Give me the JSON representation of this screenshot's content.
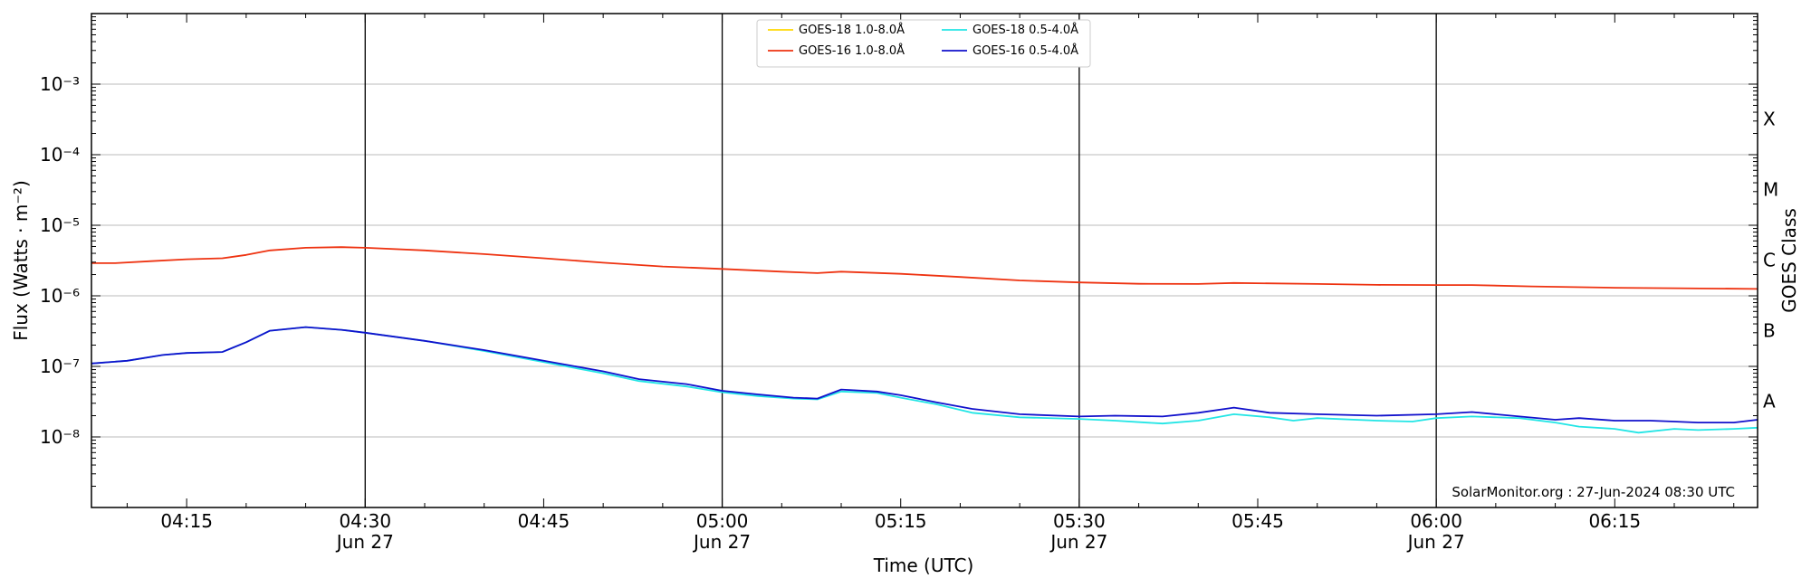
{
  "chart_data": {
    "type": "line",
    "xlabel": "Time (UTC)",
    "ylabel": "Flux (Watts · m⁻²)",
    "right_label": "GOES Class",
    "credit": "SolarMonitor.org : 27-Jun-2024 08:30 UTC",
    "x_range": [
      "2024-06-27 04:07",
      "2024-06-27 06:27"
    ],
    "ylim": [
      1e-09,
      0.01
    ],
    "yscale": "log",
    "grid": "horizontal at decades",
    "legend_position": "top-center",
    "x_ticks": [
      {
        "time": "04:15",
        "date": ""
      },
      {
        "time": "04:30",
        "date": "Jun 27"
      },
      {
        "time": "04:45",
        "date": ""
      },
      {
        "time": "05:00",
        "date": "Jun 27"
      },
      {
        "time": "05:15",
        "date": ""
      },
      {
        "time": "05:30",
        "date": "Jun 27"
      },
      {
        "time": "05:45",
        "date": ""
      },
      {
        "time": "06:00",
        "date": "Jun 27"
      },
      {
        "time": "06:15",
        "date": ""
      }
    ],
    "vertical_lines": [
      "04:30",
      "05:00",
      "05:30",
      "06:00"
    ],
    "y_ticks": [
      {
        "value": 0.001,
        "label": "10⁻³"
      },
      {
        "value": 0.0001,
        "label": "10⁻⁴"
      },
      {
        "value": 1e-05,
        "label": "10⁻⁵"
      },
      {
        "value": 1e-06,
        "label": "10⁻⁶"
      },
      {
        "value": 1e-07,
        "label": "10⁻⁷"
      },
      {
        "value": 1e-08,
        "label": "10⁻⁸"
      }
    ],
    "goes_classes": [
      {
        "label": "X",
        "value": 0.00032
      },
      {
        "label": "M",
        "value": 3.2e-05
      },
      {
        "label": "C",
        "value": 3.2e-06
      },
      {
        "label": "B",
        "value": 3.2e-07
      },
      {
        "label": "A",
        "value": 3.2e-08
      }
    ],
    "series": [
      {
        "name": "GOES-18 1.0-8.0Å",
        "color": "#ffd700",
        "points": []
      },
      {
        "name": "GOES-16 1.0-8.0Å",
        "color": "#ee3311",
        "points": [
          [
            "04:07",
            2.9e-06
          ],
          [
            "04:09",
            2.9e-06
          ],
          [
            "04:12",
            3.1e-06
          ],
          [
            "04:15",
            3.3e-06
          ],
          [
            "04:18",
            3.4e-06
          ],
          [
            "04:20",
            3.8e-06
          ],
          [
            "04:22",
            4.4e-06
          ],
          [
            "04:25",
            4.8e-06
          ],
          [
            "04:28",
            4.9e-06
          ],
          [
            "04:30",
            4.8e-06
          ],
          [
            "04:35",
            4.4e-06
          ],
          [
            "04:40",
            3.9e-06
          ],
          [
            "04:45",
            3.4e-06
          ],
          [
            "04:50",
            2.95e-06
          ],
          [
            "04:55",
            2.6e-06
          ],
          [
            "05:00",
            2.4e-06
          ],
          [
            "05:05",
            2.2e-06
          ],
          [
            "05:08",
            2.1e-06
          ],
          [
            "05:10",
            2.2e-06
          ],
          [
            "05:15",
            2.05e-06
          ],
          [
            "05:20",
            1.85e-06
          ],
          [
            "05:25",
            1.65e-06
          ],
          [
            "05:30",
            1.55e-06
          ],
          [
            "05:35",
            1.48e-06
          ],
          [
            "05:40",
            1.47e-06
          ],
          [
            "05:43",
            1.52e-06
          ],
          [
            "05:50",
            1.47e-06
          ],
          [
            "05:55",
            1.43e-06
          ],
          [
            "06:00",
            1.42e-06
          ],
          [
            "06:03",
            1.42e-06
          ],
          [
            "06:08",
            1.36e-06
          ],
          [
            "06:15",
            1.3e-06
          ],
          [
            "06:20",
            1.28e-06
          ],
          [
            "06:27",
            1.25e-06
          ]
        ]
      },
      {
        "name": "GOES-18 0.5-4.0Å",
        "color": "#22e5e5",
        "points": [
          [
            "04:07",
            1.1e-07
          ],
          [
            "04:10",
            1.2e-07
          ],
          [
            "04:13",
            1.45e-07
          ],
          [
            "04:15",
            1.55e-07
          ],
          [
            "04:18",
            1.6e-07
          ],
          [
            "04:20",
            2.2e-07
          ],
          [
            "04:22",
            3.2e-07
          ],
          [
            "04:25",
            3.6e-07
          ],
          [
            "04:28",
            3.3e-07
          ],
          [
            "04:30",
            3e-07
          ],
          [
            "04:35",
            2.3e-07
          ],
          [
            "04:40",
            1.65e-07
          ],
          [
            "04:45",
            1.15e-07
          ],
          [
            "04:50",
            8e-08
          ],
          [
            "04:53",
            6.2e-08
          ],
          [
            "04:57",
            5.2e-08
          ],
          [
            "05:00",
            4.3e-08
          ],
          [
            "05:03",
            3.8e-08
          ],
          [
            "05:06",
            3.5e-08
          ],
          [
            "05:08",
            3.4e-08
          ],
          [
            "05:10",
            4.4e-08
          ],
          [
            "05:13",
            4.2e-08
          ],
          [
            "05:15",
            3.6e-08
          ],
          [
            "05:18",
            2.9e-08
          ],
          [
            "05:21",
            2.2e-08
          ],
          [
            "05:25",
            1.9e-08
          ],
          [
            "05:30",
            1.8e-08
          ],
          [
            "05:33",
            1.7e-08
          ],
          [
            "05:37",
            1.55e-08
          ],
          [
            "05:40",
            1.7e-08
          ],
          [
            "05:43",
            2.1e-08
          ],
          [
            "05:46",
            1.9e-08
          ],
          [
            "05:48",
            1.7e-08
          ],
          [
            "05:50",
            1.85e-08
          ],
          [
            "05:55",
            1.7e-08
          ],
          [
            "05:58",
            1.65e-08
          ],
          [
            "06:00",
            1.85e-08
          ],
          [
            "06:03",
            1.95e-08
          ],
          [
            "06:07",
            1.85e-08
          ],
          [
            "06:10",
            1.6e-08
          ],
          [
            "06:12",
            1.4e-08
          ],
          [
            "06:15",
            1.3e-08
          ],
          [
            "06:17",
            1.15e-08
          ],
          [
            "06:20",
            1.3e-08
          ],
          [
            "06:22",
            1.25e-08
          ],
          [
            "06:25",
            1.3e-08
          ],
          [
            "06:27",
            1.35e-08
          ]
        ]
      },
      {
        "name": "GOES-16 0.5-4.0Å",
        "color": "#1111cc",
        "points": [
          [
            "04:07",
            1.1e-07
          ],
          [
            "04:10",
            1.2e-07
          ],
          [
            "04:13",
            1.45e-07
          ],
          [
            "04:15",
            1.55e-07
          ],
          [
            "04:18",
            1.6e-07
          ],
          [
            "04:20",
            2.2e-07
          ],
          [
            "04:22",
            3.2e-07
          ],
          [
            "04:25",
            3.6e-07
          ],
          [
            "04:28",
            3.3e-07
          ],
          [
            "04:30",
            3e-07
          ],
          [
            "04:35",
            2.3e-07
          ],
          [
            "04:40",
            1.7e-07
          ],
          [
            "04:45",
            1.2e-07
          ],
          [
            "04:50",
            8.5e-08
          ],
          [
            "04:53",
            6.6e-08
          ],
          [
            "04:57",
            5.6e-08
          ],
          [
            "05:00",
            4.5e-08
          ],
          [
            "05:03",
            4e-08
          ],
          [
            "05:06",
            3.6e-08
          ],
          [
            "05:08",
            3.5e-08
          ],
          [
            "05:10",
            4.7e-08
          ],
          [
            "05:13",
            4.4e-08
          ],
          [
            "05:15",
            3.9e-08
          ],
          [
            "05:18",
            3.1e-08
          ],
          [
            "05:21",
            2.5e-08
          ],
          [
            "05:25",
            2.1e-08
          ],
          [
            "05:30",
            1.95e-08
          ],
          [
            "05:33",
            2e-08
          ],
          [
            "05:37",
            1.95e-08
          ],
          [
            "05:40",
            2.2e-08
          ],
          [
            "05:43",
            2.6e-08
          ],
          [
            "05:46",
            2.2e-08
          ],
          [
            "05:50",
            2.1e-08
          ],
          [
            "05:55",
            2e-08
          ],
          [
            "06:00",
            2.1e-08
          ],
          [
            "06:03",
            2.25e-08
          ],
          [
            "06:07",
            1.95e-08
          ],
          [
            "06:10",
            1.75e-08
          ],
          [
            "06:12",
            1.85e-08
          ],
          [
            "06:15",
            1.7e-08
          ],
          [
            "06:18",
            1.7e-08
          ],
          [
            "06:20",
            1.65e-08
          ],
          [
            "06:22",
            1.6e-08
          ],
          [
            "06:25",
            1.6e-08
          ],
          [
            "06:27",
            1.75e-08
          ]
        ]
      }
    ]
  }
}
